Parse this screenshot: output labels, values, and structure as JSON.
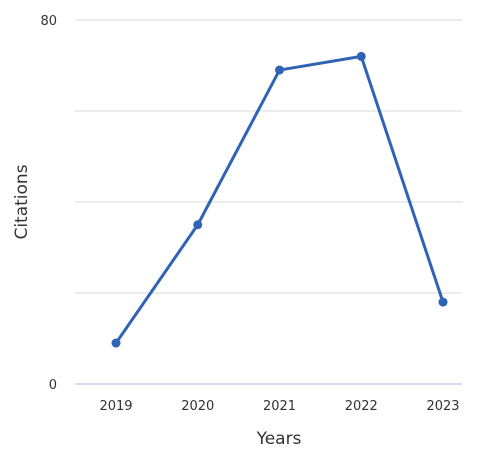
{
  "chart_data": {
    "type": "line",
    "title": "",
    "xlabel": "Years",
    "ylabel": "Citations",
    "categories": [
      "2019",
      "2020",
      "2021",
      "2022",
      "2023"
    ],
    "series": [
      {
        "values": [
          9,
          35,
          69,
          72,
          18
        ]
      }
    ],
    "ylim": [
      0,
      80
    ],
    "yticks": [
      0,
      80
    ],
    "grid": true,
    "legend": "none",
    "colors": {
      "line": "#2f63b6",
      "grid": "#d9d9d9",
      "baseline": "#9fb9e6",
      "text": "#333333"
    }
  }
}
